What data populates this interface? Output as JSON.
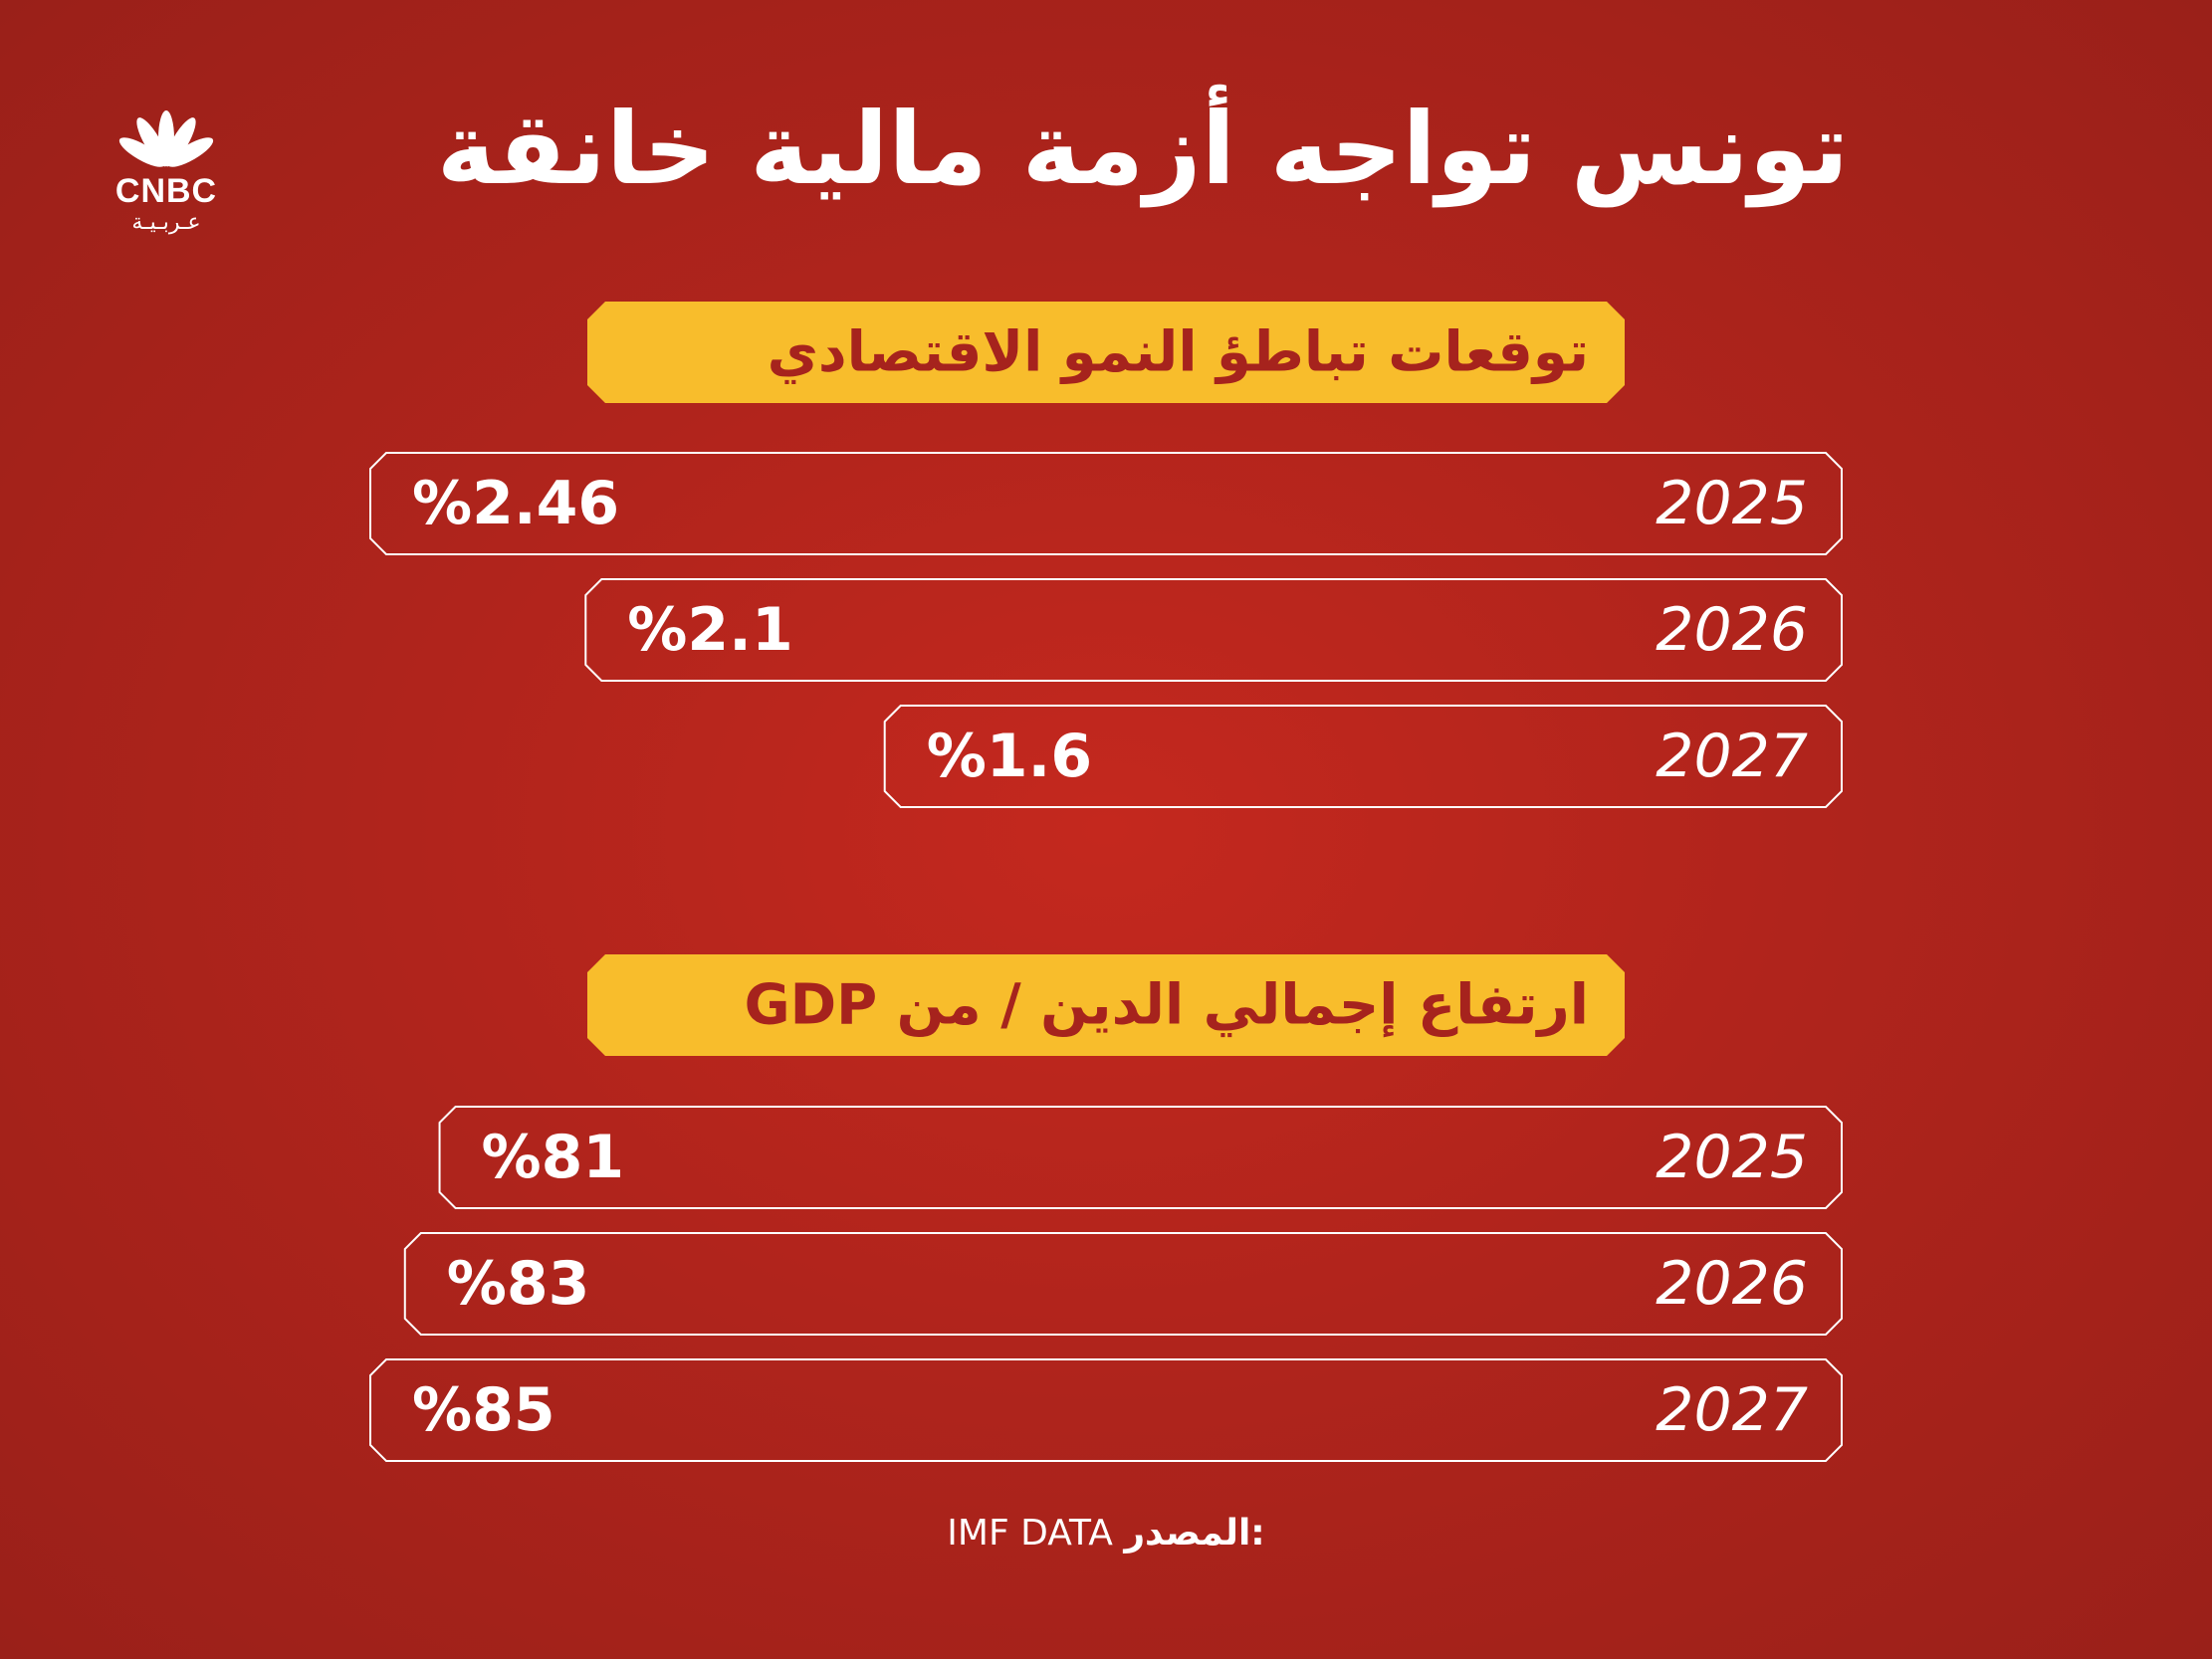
{
  "header": {
    "title": "تونس تواجه أزمة مالية خانقة",
    "logo_text": "CNBC",
    "logo_sub": "عـربـيـة"
  },
  "footer": {
    "source_label": "المصدر:",
    "source_value": "IMF DATA"
  },
  "colors": {
    "background": "#b0241c",
    "badge": "#f8bd2c",
    "badge_text": "#a6231d",
    "bar_stroke": "#ffffff"
  },
  "chart_data": [
    {
      "type": "bar",
      "orientation": "horizontal",
      "title": "توقعات تباطؤ النمو الاقتصادي",
      "categories": [
        "2025",
        "2026",
        "2027"
      ],
      "values": [
        2.46,
        2.1,
        1.6
      ],
      "value_labels": [
        "%2.46",
        "%2.1",
        "%1.6"
      ],
      "xlim": [
        0,
        2.46
      ]
    },
    {
      "type": "bar",
      "orientation": "horizontal",
      "title": "ارتفاع إجمالي الدين / من GDP",
      "categories": [
        "2025",
        "2026",
        "2027"
      ],
      "values": [
        81,
        83,
        85
      ],
      "value_labels": [
        "%81",
        "%83",
        "%85"
      ],
      "xlim": [
        0,
        85
      ]
    }
  ]
}
